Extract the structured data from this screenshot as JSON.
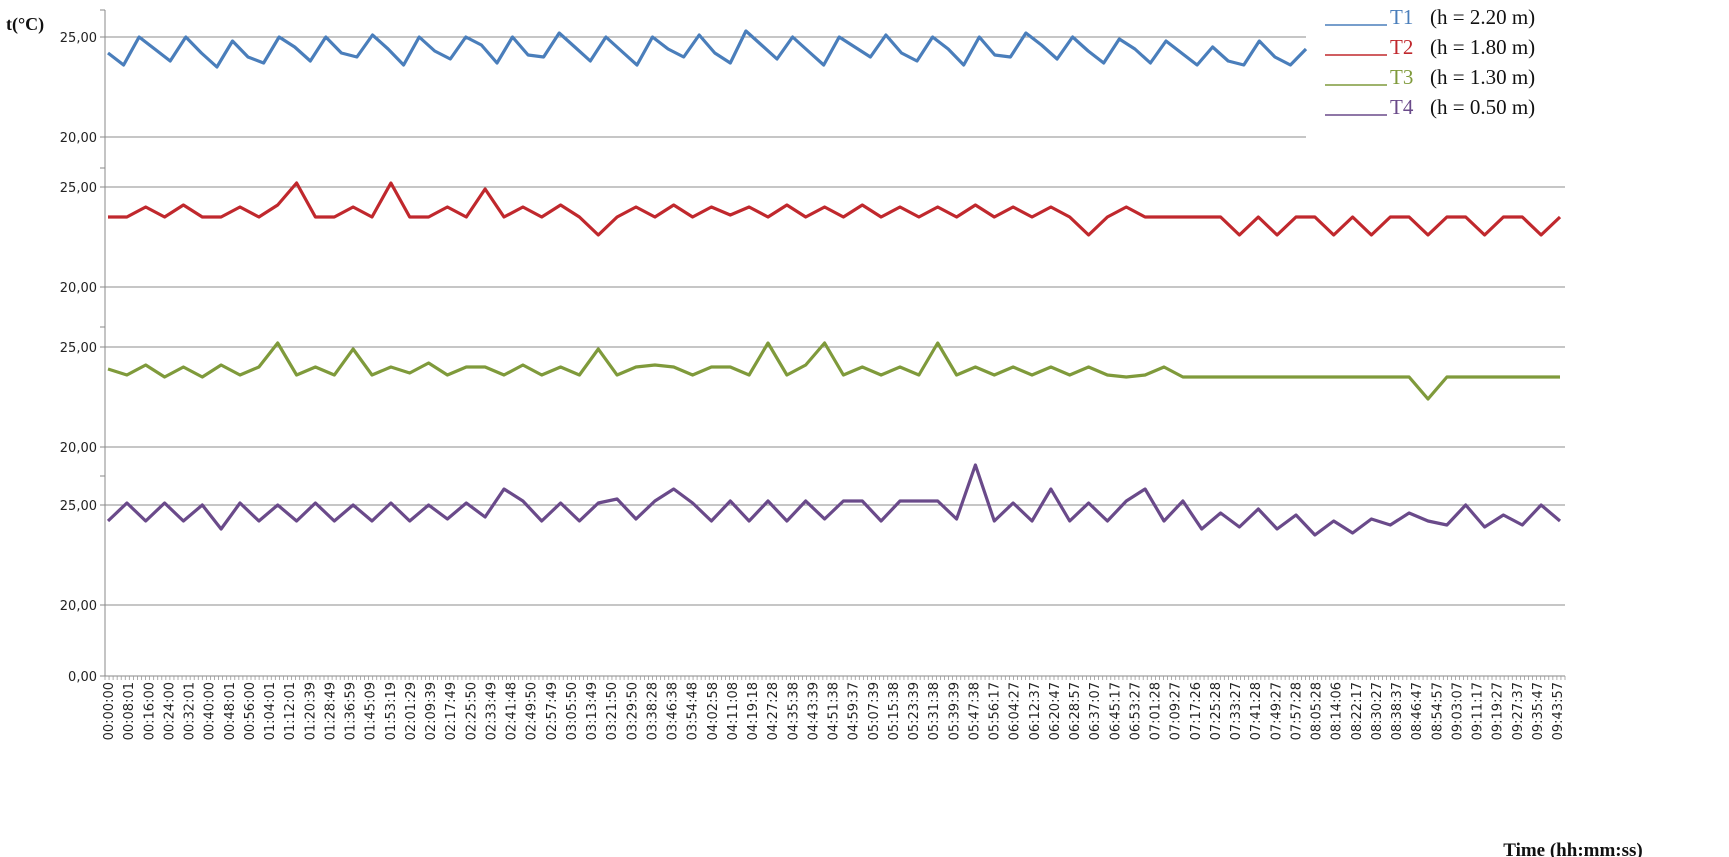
{
  "chart_data": {
    "type": "line",
    "ylabel": "t(°C)",
    "xlabel": "Time (hh:mm:ss)",
    "x_ticks": [
      "00:00:00",
      "00:08:01",
      "00:16:00",
      "00:24:00",
      "00:32:01",
      "00:40:00",
      "00:48:01",
      "00:56:00",
      "01:04:01",
      "01:12:01",
      "01:20:39",
      "01:28:49",
      "01:36:59",
      "01:45:09",
      "01:53:19",
      "02:01:29",
      "02:09:39",
      "02:17:49",
      "02:25:50",
      "02:33:49",
      "02:41:48",
      "02:49:50",
      "02:57:49",
      "03:05:50",
      "03:13:49",
      "03:21:50",
      "03:29:50",
      "03:38:28",
      "03:46:38",
      "03:54:48",
      "04:02:58",
      "04:11:08",
      "04:19:18",
      "04:27:28",
      "04:35:38",
      "04:43:39",
      "04:51:38",
      "04:59:37",
      "05:07:39",
      "05:15:38",
      "05:23:39",
      "05:31:38",
      "05:39:39",
      "05:47:38",
      "05:56:17",
      "06:04:27",
      "06:12:37",
      "06:20:47",
      "06:28:57",
      "06:37:07",
      "06:45:17",
      "06:53:27",
      "07:01:28",
      "07:09:27",
      "07:17:26",
      "07:25:28",
      "07:33:27",
      "07:41:28",
      "07:49:27",
      "07:57:28",
      "08:05:28",
      "08:14:06",
      "08:22:17",
      "08:30:27",
      "08:38:37",
      "08:46:47",
      "08:54:57",
      "09:03:07",
      "09:11:17",
      "09:19:27",
      "09:27:37",
      "09:35:47",
      "09:43:57"
    ],
    "panels": [
      {
        "series": "T1",
        "y_ticks": [
          "20,00",
          "25,00"
        ],
        "y_values": [
          20,
          25
        ]
      },
      {
        "series": "T2",
        "y_ticks": [
          "20,00",
          "25,00"
        ],
        "y_values": [
          20,
          25
        ]
      },
      {
        "series": "T3",
        "y_ticks": [
          "20,00",
          "25,00"
        ],
        "y_values": [
          20,
          25
        ]
      },
      {
        "series": "T4",
        "y_ticks": [
          "0,00",
          "20,00",
          "25,00"
        ],
        "y_values": [
          0,
          20,
          25
        ]
      }
    ],
    "series": [
      {
        "name": "T1",
        "legend_label": "(h = 2.20 m)",
        "color": "#4a7ebb",
        "baseline": 24.8,
        "values": [
          24.2,
          23.6,
          25.0,
          24.4,
          23.8,
          25.0,
          24.2,
          23.5,
          24.8,
          24.0,
          23.7,
          25.0,
          24.5,
          23.8,
          25.0,
          24.2,
          24.0,
          25.1,
          24.4,
          23.6,
          25.0,
          24.3,
          23.9,
          25.0,
          24.6,
          23.7,
          25.0,
          24.1,
          24.0,
          25.2,
          24.5,
          23.8,
          25.0,
          24.3,
          23.6,
          25.0,
          24.4,
          24.0,
          25.1,
          24.2,
          23.7,
          25.3,
          24.6,
          23.9,
          25.0,
          24.3,
          23.6,
          25.0,
          24.5,
          24.0,
          25.1,
          24.2,
          23.8,
          25.0,
          24.4,
          23.6,
          25.0,
          24.1,
          24.0,
          25.2,
          24.6,
          23.9,
          25.0,
          24.3,
          23.7,
          24.9,
          24.4,
          23.7,
          24.8,
          24.2,
          23.6,
          24.5,
          23.8,
          23.6,
          24.8,
          24.0,
          23.6,
          24.4
        ]
      },
      {
        "name": "T2",
        "legend_label": "(h = 1.80 m)",
        "color": "#c0282d",
        "baseline": 23.5,
        "values": [
          23.5,
          23.5,
          24.0,
          23.5,
          24.1,
          23.5,
          23.5,
          24.0,
          23.5,
          24.1,
          25.2,
          23.5,
          23.5,
          24.0,
          23.5,
          25.2,
          23.5,
          23.5,
          24.0,
          23.5,
          24.9,
          23.5,
          24.0,
          23.5,
          24.1,
          23.5,
          22.6,
          23.5,
          24.0,
          23.5,
          24.1,
          23.5,
          24.0,
          23.6,
          24.0,
          23.5,
          24.1,
          23.5,
          24.0,
          23.5,
          24.1,
          23.5,
          24.0,
          23.5,
          24.0,
          23.5,
          24.1,
          23.5,
          24.0,
          23.5,
          24.0,
          23.5,
          22.6,
          23.5,
          24.0,
          23.5,
          23.5,
          23.5,
          23.5,
          23.5,
          22.6,
          23.5,
          22.6,
          23.5,
          23.5,
          22.6,
          23.5,
          22.6,
          23.5,
          23.5,
          22.6,
          23.5,
          23.5,
          22.6,
          23.5,
          23.5,
          22.6,
          23.5
        ]
      },
      {
        "name": "T3",
        "legend_label": "(h = 1.30 m)",
        "color": "#7f9a3b",
        "baseline": 23.5,
        "values": [
          23.9,
          23.6,
          24.1,
          23.5,
          24.0,
          23.5,
          24.1,
          23.6,
          24.0,
          25.2,
          23.6,
          24.0,
          23.6,
          24.9,
          23.6,
          24.0,
          23.7,
          24.2,
          23.6,
          24.0,
          24.0,
          23.6,
          24.1,
          23.6,
          24.0,
          23.6,
          24.9,
          23.6,
          24.0,
          24.1,
          24.0,
          23.6,
          24.0,
          24.0,
          23.6,
          25.2,
          23.6,
          24.1,
          25.2,
          23.6,
          24.0,
          23.6,
          24.0,
          23.6,
          25.2,
          23.6,
          24.0,
          23.6,
          24.0,
          23.6,
          24.0,
          23.6,
          24.0,
          23.6,
          23.5,
          23.6,
          24.0,
          23.5,
          23.5,
          23.5,
          23.5,
          23.5,
          23.5,
          23.5,
          23.5,
          23.5,
          23.5,
          23.5,
          23.5,
          23.5,
          22.4,
          23.5,
          23.5,
          23.5,
          23.5,
          23.5,
          23.5,
          23.5
        ]
      },
      {
        "name": "T4",
        "legend_label": "(h = 0.50 m)",
        "color": "#6a4a8a",
        "baseline": 24.8,
        "values": [
          24.2,
          25.1,
          24.2,
          25.1,
          24.2,
          25.0,
          23.8,
          25.1,
          24.2,
          25.0,
          24.2,
          25.1,
          24.2,
          25.0,
          24.2,
          25.1,
          24.2,
          25.0,
          24.3,
          25.1,
          24.4,
          25.8,
          25.2,
          24.2,
          25.1,
          24.2,
          25.1,
          25.3,
          24.3,
          25.2,
          25.8,
          25.1,
          24.2,
          25.2,
          24.2,
          25.2,
          24.2,
          25.2,
          24.3,
          25.2,
          25.2,
          24.2,
          25.2,
          25.2,
          25.2,
          24.3,
          27.0,
          24.2,
          25.1,
          24.2,
          25.8,
          24.2,
          25.1,
          24.2,
          25.2,
          25.8,
          24.2,
          25.2,
          23.8,
          24.6,
          23.9,
          24.8,
          23.8,
          24.5,
          23.5,
          24.2,
          23.6,
          24.3,
          24.0,
          24.6,
          24.2,
          24.0,
          25.0,
          23.9,
          24.5,
          24.0,
          25.0,
          24.2
        ]
      }
    ]
  }
}
